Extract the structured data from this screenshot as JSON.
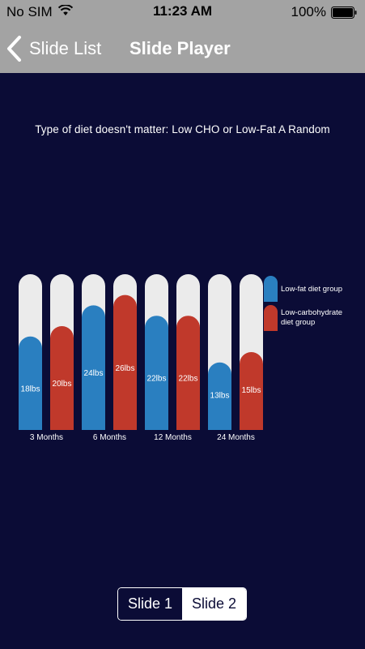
{
  "status_bar": {
    "carrier": "No SIM",
    "time": "11:23 AM",
    "battery": "100%"
  },
  "nav": {
    "back_label": "Slide List",
    "title": "Slide Player"
  },
  "slide": {
    "heading": "Type of diet doesn't matter: Low CHO or Low-Fat A Random"
  },
  "chart_data": {
    "type": "bar",
    "categories": [
      "3 Months",
      "6 Months",
      "12 Months",
      "24 Months"
    ],
    "ylim": [
      0,
      30
    ],
    "series": [
      {
        "name": "Low-fat diet group",
        "values": [
          18,
          24,
          22,
          13
        ],
        "labels": [
          "18lbs",
          "24lbs",
          "22lbs",
          "13lbs"
        ],
        "color": "#2a7fc0"
      },
      {
        "name": "Low-carbohydrate diet group",
        "values": [
          20,
          26,
          22,
          15
        ],
        "labels": [
          "20lbs",
          "26lbs",
          "22lbs",
          "15lbs"
        ],
        "color": "#c0392b"
      }
    ],
    "track_color": "#ebebeb",
    "legend": [
      "Low-fat diet group",
      "Low-carbohydrate diet group"
    ],
    "legend_position": "right"
  },
  "segments": {
    "slide1": "Slide 1",
    "slide2": "Slide 2"
  },
  "colors": {
    "background": "#0b0c36",
    "bar_gray": "#a3a3a3",
    "blue": "#2a7fc0",
    "red": "#c0392b"
  }
}
